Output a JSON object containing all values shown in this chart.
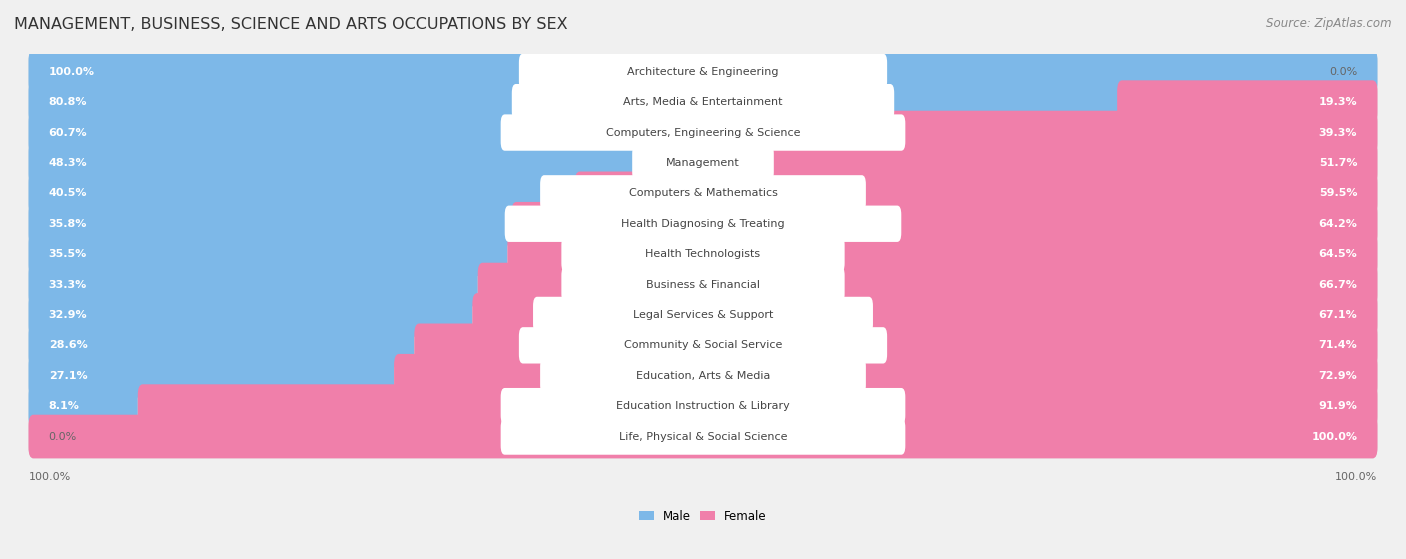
{
  "title": "MANAGEMENT, BUSINESS, SCIENCE AND ARTS OCCUPATIONS BY SEX",
  "source": "Source: ZipAtlas.com",
  "categories": [
    "Architecture & Engineering",
    "Arts, Media & Entertainment",
    "Computers, Engineering & Science",
    "Management",
    "Computers & Mathematics",
    "Health Diagnosing & Treating",
    "Health Technologists",
    "Business & Financial",
    "Legal Services & Support",
    "Community & Social Service",
    "Education, Arts & Media",
    "Education Instruction & Library",
    "Life, Physical & Social Science"
  ],
  "male_pct": [
    100.0,
    80.8,
    60.7,
    48.3,
    40.5,
    35.8,
    35.5,
    33.3,
    32.9,
    28.6,
    27.1,
    8.1,
    0.0
  ],
  "female_pct": [
    0.0,
    19.3,
    39.3,
    51.7,
    59.5,
    64.2,
    64.5,
    66.7,
    67.1,
    71.4,
    72.9,
    91.9,
    100.0
  ],
  "male_color": "#7db8e8",
  "female_color": "#f07faa",
  "bg_color": "#f0f0f0",
  "row_bg_color": "#e0e0e0",
  "label_bg_color": "#ffffff",
  "title_fontsize": 11.5,
  "source_fontsize": 8.5,
  "bar_label_fontsize": 8.0,
  "cat_label_fontsize": 8.0
}
